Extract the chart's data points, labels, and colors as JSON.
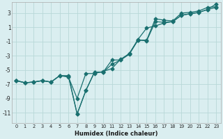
{
  "line1_x": [
    0,
    1,
    2,
    3,
    4,
    5,
    6,
    7,
    8,
    9,
    10,
    11,
    12,
    13,
    14,
    15,
    16,
    17,
    18,
    19,
    20,
    21,
    22,
    23
  ],
  "line1_y": [
    -6.5,
    -6.8,
    -6.7,
    -6.5,
    -6.7,
    -5.8,
    -5.8,
    -11.2,
    -7.9,
    -5.3,
    -5.3,
    -3.6,
    -3.6,
    -2.8,
    -0.8,
    -0.8,
    2.2,
    2.0,
    1.9,
    3.0,
    3.1,
    3.3,
    3.8,
    3.9
  ],
  "line2_x": [
    0,
    1,
    2,
    3,
    4,
    5,
    6,
    7,
    8,
    9,
    10,
    11,
    12,
    13,
    14,
    15,
    16,
    17,
    18,
    19,
    20,
    21,
    22,
    23
  ],
  "line2_y": [
    -6.5,
    -6.8,
    -6.7,
    -6.5,
    -6.7,
    -5.8,
    -6.0,
    -9.0,
    -5.5,
    -5.5,
    -5.2,
    -4.8,
    -3.5,
    -2.7,
    -0.7,
    0.9,
    1.2,
    1.6,
    1.8,
    2.7,
    2.9,
    3.1,
    3.5,
    4.3
  ],
  "line3_x": [
    0,
    1,
    2,
    3,
    4,
    5,
    6,
    7,
    8,
    9,
    10,
    11,
    12,
    13,
    14,
    15,
    16,
    17,
    18,
    19,
    20,
    21,
    22,
    23
  ],
  "line3_y": [
    -6.5,
    -6.8,
    -6.7,
    -6.5,
    -6.7,
    -5.8,
    -5.9,
    -11.2,
    -7.9,
    -5.3,
    -5.3,
    -4.2,
    -3.6,
    -2.7,
    -0.8,
    -0.9,
    1.8,
    1.7,
    1.8,
    2.7,
    2.9,
    3.1,
    3.5,
    3.8
  ],
  "line_color": "#1a7070",
  "bg_color": "#daeef0",
  "grid_color": "#b8d8d8",
  "xlabel": "Humidex (Indice chaleur)",
  "xlim": [
    -0.5,
    23.5
  ],
  "ylim": [
    -12.5,
    4.5
  ],
  "yticks": [
    3,
    1,
    -1,
    -3,
    -5,
    -7,
    -9,
    -11
  ],
  "xticks": [
    0,
    1,
    2,
    3,
    4,
    5,
    6,
    7,
    8,
    9,
    10,
    11,
    12,
    13,
    14,
    15,
    16,
    17,
    18,
    19,
    20,
    21,
    22,
    23
  ],
  "marker": "D",
  "markersize": 2.5,
  "linewidth": 0.9
}
